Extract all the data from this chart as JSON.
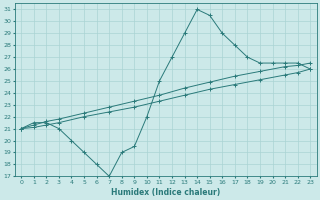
{
  "xlabel": "Humidex (Indice chaleur)",
  "bg_color": "#cce9e9",
  "line_color": "#2a7a7a",
  "grid_color": "#aad4d4",
  "xlim": [
    -0.5,
    23.5
  ],
  "ylim": [
    17,
    31.5
  ],
  "xticks": [
    0,
    1,
    2,
    3,
    4,
    5,
    6,
    7,
    8,
    9,
    10,
    11,
    12,
    13,
    14,
    15,
    16,
    17,
    18,
    19,
    20,
    21,
    22,
    23
  ],
  "yticks": [
    17,
    18,
    19,
    20,
    21,
    22,
    23,
    24,
    25,
    26,
    27,
    28,
    29,
    30,
    31
  ],
  "line1_x": [
    0,
    1,
    2,
    3,
    4,
    5,
    6,
    7,
    8,
    9,
    10,
    11,
    12,
    13,
    14,
    15,
    16,
    17,
    18,
    19,
    20,
    21,
    22,
    23
  ],
  "line1_y": [
    21,
    21.5,
    21.5,
    21,
    20,
    19,
    18,
    17,
    19,
    19.5,
    22,
    25,
    27,
    29,
    31,
    30.5,
    29,
    28,
    27,
    26.5,
    26.5,
    26.5,
    26.5,
    26
  ],
  "line2_x": [
    0,
    1,
    2,
    3,
    5,
    7,
    9,
    11,
    13,
    15,
    17,
    19,
    21,
    22,
    23
  ],
  "line2_y": [
    21,
    21.3,
    21.6,
    21.8,
    22.3,
    22.8,
    23.3,
    23.8,
    24.4,
    24.9,
    25.4,
    25.8,
    26.2,
    26.3,
    26.5
  ],
  "line3_x": [
    0,
    1,
    2,
    3,
    5,
    7,
    9,
    11,
    13,
    15,
    17,
    19,
    21,
    22,
    23
  ],
  "line3_y": [
    21,
    21.1,
    21.3,
    21.5,
    22.0,
    22.4,
    22.8,
    23.3,
    23.8,
    24.3,
    24.7,
    25.1,
    25.5,
    25.7,
    26.0
  ]
}
